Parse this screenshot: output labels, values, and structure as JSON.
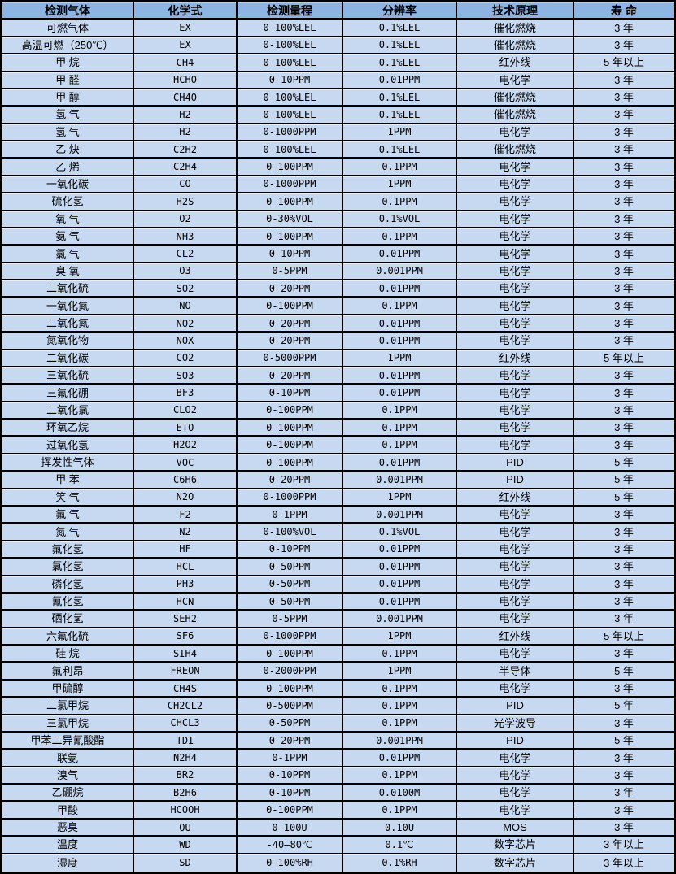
{
  "table": {
    "title": "gas-sensor-specification-table",
    "colors": {
      "header_bg": "#8eb4e3",
      "row_bg": "#c7d9f1",
      "border": "#000000",
      "text": "#000000"
    },
    "columns": [
      {
        "key": "gas",
        "label": "检测气体"
      },
      {
        "key": "formula",
        "label": "化学式"
      },
      {
        "key": "range",
        "label": "检测量程"
      },
      {
        "key": "resolution",
        "label": "分辨率"
      },
      {
        "key": "principle",
        "label": "技术原理"
      },
      {
        "key": "lifespan",
        "label": "寿 命"
      }
    ],
    "rows": [
      [
        "可燃气体",
        "EX",
        "0-100%LEL",
        "0.1%LEL",
        "催化燃烧",
        "3 年"
      ],
      [
        "高温可燃（250℃）",
        "EX",
        "0-100%LEL",
        "0.1%LEL",
        "催化燃烧",
        "3 年"
      ],
      [
        "甲 烷",
        "CH4",
        "0-100%LEL",
        "0.1%LEL",
        "红外线",
        "5 年以上"
      ],
      [
        "甲 醛",
        "HCHO",
        "0-10PPM",
        "0.01PPM",
        "电化学",
        "3 年"
      ],
      [
        "甲 醇",
        "CH4O",
        "0-100%LEL",
        "0.1%LEL",
        "催化燃烧",
        "3 年"
      ],
      [
        "氢 气",
        "H2",
        "0-100%LEL",
        "0.1%LEL",
        "催化燃烧",
        "3 年"
      ],
      [
        "氢 气",
        "H2",
        "0-1000PPM",
        "1PPM",
        "电化学",
        "3 年"
      ],
      [
        "乙 炔",
        "C2H2",
        "0-100%LEL",
        "0.1%LEL",
        "催化燃烧",
        "3 年"
      ],
      [
        "乙 烯",
        "C2H4",
        "0-100PPM",
        "0.1PPM",
        "电化学",
        "3 年"
      ],
      [
        "一氧化碳",
        "CO",
        "0-1000PPM",
        "1PPM",
        "电化学",
        "3 年"
      ],
      [
        "硫化氢",
        "H2S",
        "0-100PPM",
        "0.1PPM",
        "电化学",
        "3 年"
      ],
      [
        "氧 气",
        "O2",
        "0-30%VOL",
        "0.1%VOL",
        "电化学",
        "3 年"
      ],
      [
        "氨 气",
        "NH3",
        "0-100PPM",
        "0.1PPM",
        "电化学",
        "3 年"
      ],
      [
        "氯 气",
        "CL2",
        "0-10PPM",
        "0.01PPM",
        "电化学",
        "3 年"
      ],
      [
        "臭 氧",
        "O3",
        "0-5PPM",
        "0.001PPM",
        "电化学",
        "3 年"
      ],
      [
        "二氧化硫",
        "SO2",
        "0-20PPM",
        "0.01PPM",
        "电化学",
        "3 年"
      ],
      [
        "一氧化氮",
        "NO",
        "0-100PPM",
        "0.1PPM",
        "电化学",
        "3 年"
      ],
      [
        "二氧化氮",
        "NO2",
        "0-20PPM",
        "0.01PPM",
        "电化学",
        "3 年"
      ],
      [
        "氮氧化物",
        "NOX",
        "0-20PPM",
        "0.01PPM",
        "电化学",
        "3 年"
      ],
      [
        "二氧化碳",
        "CO2",
        "0-5000PPM",
        "1PPM",
        "红外线",
        "5 年以上"
      ],
      [
        "三氧化硫",
        "SO3",
        "0-20PPM",
        "0.01PPM",
        "电化学",
        "3 年"
      ],
      [
        "三氟化硼",
        "BF3",
        "0-10PPM",
        "0.01PPM",
        "电化学",
        "3 年"
      ],
      [
        "二氧化氯",
        "CLO2",
        "0-100PPM",
        "0.1PPM",
        "电化学",
        "3 年"
      ],
      [
        "环氧乙烷",
        "ETO",
        "0-100PPM",
        "0.1PPM",
        "电化学",
        "3 年"
      ],
      [
        "过氧化氢",
        "H2O2",
        "0-100PPM",
        "0.1PPM",
        "电化学",
        "3 年"
      ],
      [
        "挥发性气体",
        "VOC",
        "0-100PPM",
        "0.01PPM",
        "PID",
        "5 年"
      ],
      [
        "甲 苯",
        "C6H6",
        "0-20PPM",
        "0.001PPM",
        "PID",
        "5 年"
      ],
      [
        "笑 气",
        "N2O",
        "0-1000PPM",
        "1PPM",
        "红外线",
        "5 年"
      ],
      [
        "氟 气",
        "F2",
        "0-1PPM",
        "0.001PPM",
        "电化学",
        "3 年"
      ],
      [
        "氮 气",
        "N2",
        "0-100%VOL",
        "0.1%VOL",
        "电化学",
        "3 年"
      ],
      [
        "氟化氢",
        "HF",
        "0-10PPM",
        "0.01PPM",
        "电化学",
        "3 年"
      ],
      [
        "氯化氢",
        "HCL",
        "0-50PPM",
        "0.01PPM",
        "电化学",
        "3 年"
      ],
      [
        "磷化氢",
        "PH3",
        "0-50PPM",
        "0.01PPM",
        "电化学",
        "3 年"
      ],
      [
        "氰化氢",
        "HCN",
        "0-50PPM",
        "0.01PPM",
        "电化学",
        "3 年"
      ],
      [
        "硒化氢",
        "SEH2",
        "0-5PPM",
        "0.001PPM",
        "电化学",
        "3 年"
      ],
      [
        "六氟化硫",
        "SF6",
        "0-1000PPM",
        "1PPM",
        "红外线",
        "5 年以上"
      ],
      [
        "硅 烷",
        "SIH4",
        "0-100PPM",
        "0.1PPM",
        "电化学",
        "3 年"
      ],
      [
        "氟利昂",
        "FREON",
        "0-2000PPM",
        "1PPM",
        "半导体",
        "5 年"
      ],
      [
        "甲硫醇",
        "CH4S",
        "0-100PPM",
        "0.1PPM",
        "电化学",
        "3 年"
      ],
      [
        "二氯甲烷",
        "CH2CL2",
        "0-500PPM",
        "0.1PPM",
        "PID",
        "5 年"
      ],
      [
        "三氯甲烷",
        "CHCL3",
        "0-50PPM",
        "0.1PPM",
        "光学波导",
        "3 年"
      ],
      [
        "甲苯二异氰酸酯",
        "TDI",
        "0-20PPM",
        "0.001PPM",
        "PID",
        "5 年"
      ],
      [
        "联氨",
        "N2H4",
        "0-1PPM",
        "0.01PPM",
        "电化学",
        "3 年"
      ],
      [
        "溴气",
        "BR2",
        "0-10PPM",
        "0.1PPM",
        "电化学",
        "3 年"
      ],
      [
        "乙硼烷",
        "B2H6",
        "0-10PPM",
        "0.0100M",
        "电化学",
        "3 年"
      ],
      [
        "甲酸",
        "HCOOH",
        "0-100PPM",
        "0.1PPM",
        "电化学",
        "3 年"
      ],
      [
        "恶臭",
        "OU",
        "0-100U",
        "0.10U",
        "MOS",
        "3 年"
      ],
      [
        "温度",
        "WD",
        "-40—80℃",
        "0.1℃",
        "数字芯片",
        "3 年以上"
      ],
      [
        "湿度",
        "SD",
        "0-100%RH",
        "0.1%RH",
        "数字芯片",
        "3 年以上"
      ]
    ]
  }
}
